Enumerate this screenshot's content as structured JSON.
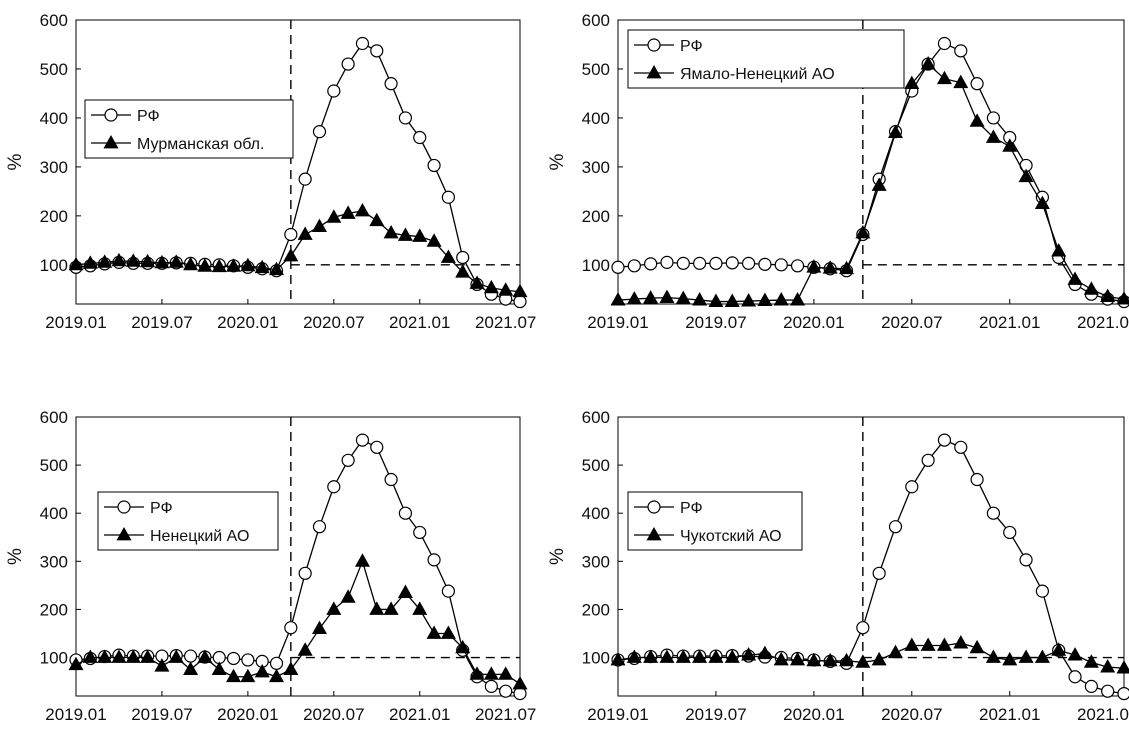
{
  "chart_data": [
    {
      "type": "line",
      "ylabel": "%",
      "ylim": [
        20,
        600
      ],
      "yticks": [
        100,
        200,
        300,
        400,
        500,
        600
      ],
      "xlim": [
        "2019.01",
        "2021.08"
      ],
      "xticks": [
        "2019.01",
        "2019.07",
        "2020.01",
        "2020.07",
        "2021.01",
        "2021.07"
      ],
      "reference_lines": {
        "vertical_x": "2020.04",
        "horizontal_y": 100
      },
      "legend_position": "upper-left",
      "x": [
        "2019.01",
        "2019.02",
        "2019.03",
        "2019.04",
        "2019.05",
        "2019.06",
        "2019.07",
        "2019.08",
        "2019.09",
        "2019.10",
        "2019.11",
        "2019.12",
        "2020.01",
        "2020.02",
        "2020.03",
        "2020.04",
        "2020.05",
        "2020.06",
        "2020.07",
        "2020.08",
        "2020.09",
        "2020.10",
        "2020.11",
        "2020.12",
        "2021.01",
        "2021.02",
        "2021.03",
        "2021.04",
        "2021.05",
        "2021.06",
        "2021.07",
        "2021.08"
      ],
      "series": [
        {
          "name": "РФ",
          "marker": "circle",
          "values": [
            95,
            98,
            102,
            105,
            103,
            103,
            103,
            104,
            103,
            101,
            100,
            98,
            95,
            92,
            88,
            162,
            275,
            372,
            455,
            510,
            552,
            537,
            470,
            400,
            360,
            303,
            238,
            115,
            60,
            40,
            30,
            25
          ]
        },
        {
          "name": "Мурманская обл.",
          "marker": "triangle",
          "values": [
            100,
            103,
            105,
            108,
            107,
            106,
            104,
            105,
            100,
            97,
            96,
            97,
            98,
            94,
            90,
            118,
            162,
            178,
            197,
            205,
            210,
            190,
            165,
            160,
            158,
            148,
            115,
            85,
            62,
            53,
            48,
            45
          ]
        }
      ]
    },
    {
      "type": "line",
      "ylabel": "%",
      "ylim": [
        20,
        600
      ],
      "yticks": [
        100,
        200,
        300,
        400,
        500,
        600
      ],
      "xlim": [
        "2019.01",
        "2021.08"
      ],
      "xticks": [
        "2019.01",
        "2019.07",
        "2020.01",
        "2020.07",
        "2021.01",
        "2021.07"
      ],
      "reference_lines": {
        "vertical_x": "2020.04",
        "horizontal_y": 100
      },
      "legend_position": "top-left",
      "x": [
        "2019.01",
        "2019.02",
        "2019.03",
        "2019.04",
        "2019.05",
        "2019.06",
        "2019.07",
        "2019.08",
        "2019.09",
        "2019.10",
        "2019.11",
        "2019.12",
        "2020.01",
        "2020.02",
        "2020.03",
        "2020.04",
        "2020.05",
        "2020.06",
        "2020.07",
        "2020.08",
        "2020.09",
        "2020.10",
        "2020.11",
        "2020.12",
        "2021.01",
        "2021.02",
        "2021.03",
        "2021.04",
        "2021.05",
        "2021.06",
        "2021.07",
        "2021.08"
      ],
      "series": [
        {
          "name": "РФ",
          "marker": "circle",
          "values": [
            95,
            98,
            102,
            105,
            103,
            103,
            103,
            104,
            103,
            101,
            100,
            98,
            95,
            92,
            88,
            162,
            275,
            372,
            455,
            510,
            552,
            537,
            470,
            400,
            360,
            303,
            238,
            115,
            60,
            40,
            30,
            25
          ]
        },
        {
          "name": "Ямало-Ненецкий АО",
          "marker": "triangle",
          "values": [
            28,
            30,
            32,
            33,
            31,
            28,
            25,
            25,
            26,
            27,
            28,
            28,
            95,
            93,
            92,
            165,
            262,
            370,
            470,
            510,
            480,
            472,
            393,
            360,
            342,
            280,
            225,
            128,
            70,
            50,
            35,
            30
          ]
        }
      ]
    },
    {
      "type": "line",
      "ylabel": "%",
      "ylim": [
        20,
        600
      ],
      "yticks": [
        100,
        200,
        300,
        400,
        500,
        600
      ],
      "xlim": [
        "2019.01",
        "2021.08"
      ],
      "xticks": [
        "2019.01",
        "2019.07",
        "2020.01",
        "2020.07",
        "2021.01",
        "2021.07"
      ],
      "reference_lines": {
        "vertical_x": "2020.04",
        "horizontal_y": 100
      },
      "legend_position": "middle-left",
      "x": [
        "2019.01",
        "2019.02",
        "2019.03",
        "2019.04",
        "2019.05",
        "2019.06",
        "2019.07",
        "2019.08",
        "2019.09",
        "2019.10",
        "2019.11",
        "2019.12",
        "2020.01",
        "2020.02",
        "2020.03",
        "2020.04",
        "2020.05",
        "2020.06",
        "2020.07",
        "2020.08",
        "2020.09",
        "2020.10",
        "2020.11",
        "2020.12",
        "2021.01",
        "2021.02",
        "2021.03",
        "2021.04",
        "2021.05",
        "2021.06",
        "2021.07",
        "2021.08"
      ],
      "series": [
        {
          "name": "РФ",
          "marker": "circle",
          "values": [
            95,
            98,
            102,
            105,
            103,
            103,
            103,
            104,
            103,
            101,
            100,
            98,
            95,
            92,
            88,
            162,
            275,
            372,
            455,
            510,
            552,
            537,
            470,
            400,
            360,
            303,
            238,
            115,
            60,
            40,
            30,
            25
          ]
        },
        {
          "name": "Ненецкий АО",
          "marker": "triangle",
          "values": [
            85,
            100,
            100,
            100,
            100,
            100,
            82,
            100,
            75,
            100,
            75,
            60,
            60,
            70,
            60,
            75,
            115,
            160,
            200,
            225,
            300,
            200,
            200,
            235,
            200,
            150,
            150,
            120,
            65,
            65,
            65,
            45
          ]
        }
      ]
    },
    {
      "type": "line",
      "ylabel": "%",
      "ylim": [
        20,
        600
      ],
      "yticks": [
        100,
        200,
        300,
        400,
        500,
        600
      ],
      "xlim": [
        "2019.01",
        "2021.08"
      ],
      "xticks": [
        "2019.01",
        "2019.07",
        "2020.01",
        "2020.07",
        "2021.01",
        "2021.07"
      ],
      "reference_lines": {
        "vertical_x": "2020.04",
        "horizontal_y": 100
      },
      "legend_position": "middle-left",
      "x": [
        "2019.01",
        "2019.02",
        "2019.03",
        "2019.04",
        "2019.05",
        "2019.06",
        "2019.07",
        "2019.08",
        "2019.09",
        "2019.10",
        "2019.11",
        "2019.12",
        "2020.01",
        "2020.02",
        "2020.03",
        "2020.04",
        "2020.05",
        "2020.06",
        "2020.07",
        "2020.08",
        "2020.09",
        "2020.10",
        "2020.11",
        "2020.12",
        "2021.01",
        "2021.02",
        "2021.03",
        "2021.04",
        "2021.05",
        "2021.06",
        "2021.07",
        "2021.08"
      ],
      "series": [
        {
          "name": "РФ",
          "marker": "circle",
          "values": [
            95,
            98,
            102,
            105,
            103,
            103,
            103,
            104,
            103,
            101,
            100,
            98,
            95,
            92,
            88,
            162,
            275,
            372,
            455,
            510,
            552,
            537,
            470,
            400,
            360,
            303,
            238,
            115,
            60,
            40,
            30,
            25
          ]
        },
        {
          "name": "Чукотский АО",
          "marker": "triangle",
          "values": [
            95,
            100,
            100,
            100,
            100,
            100,
            100,
            100,
            105,
            108,
            95,
            95,
            93,
            93,
            93,
            90,
            95,
            110,
            125,
            125,
            125,
            130,
            120,
            100,
            95,
            100,
            100,
            115,
            105,
            90,
            80,
            78
          ]
        }
      ]
    }
  ]
}
